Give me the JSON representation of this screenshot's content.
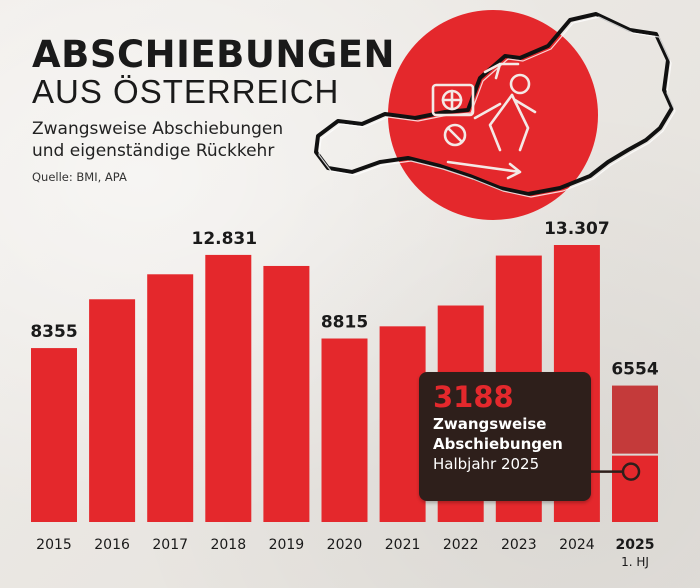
{
  "header": {
    "title": "ABSCHIEBUNGEN",
    "subtitle": "AUS ÖSTERREICH",
    "desc_line1": "Zwangsweise Abschiebungen",
    "desc_line2": "und eigenständige Rückkehr",
    "source": "Quelle: BMI, APA"
  },
  "callout": {
    "value": "3188",
    "line1": "Zwangsweise",
    "line2": "Abschiebungen",
    "line3": "Halbjahr 2025"
  },
  "colors": {
    "bar": "#e4282c",
    "bar_light": "#c43a3a",
    "callout_bg": "#2e1f1b",
    "text": "#1a1a1a"
  },
  "chart_data": {
    "type": "bar",
    "categories": [
      "2015",
      "2016",
      "2017",
      "2018",
      "2019",
      "2020",
      "2021",
      "2022",
      "2023",
      "2024",
      "2025"
    ],
    "category_sublabels": [
      "",
      "",
      "",
      "",
      "",
      "",
      "",
      "",
      "",
      "",
      "1. HJ"
    ],
    "values": [
      8355,
      10700,
      11900,
      12831,
      12300,
      8815,
      9400,
      10400,
      12800,
      13307,
      6554
    ],
    "data_labels": [
      "8355",
      "",
      "",
      "12.831",
      "",
      "8815",
      "",
      "",
      "",
      "13.307",
      "6554"
    ],
    "highlight": {
      "category": "2025",
      "subvalue": 3188
    },
    "ylim": [
      0,
      14000
    ],
    "grid": false,
    "title": "ABSCHIEBUNGEN AUS ÖSTERREICH",
    "xlabel": "",
    "ylabel": ""
  }
}
